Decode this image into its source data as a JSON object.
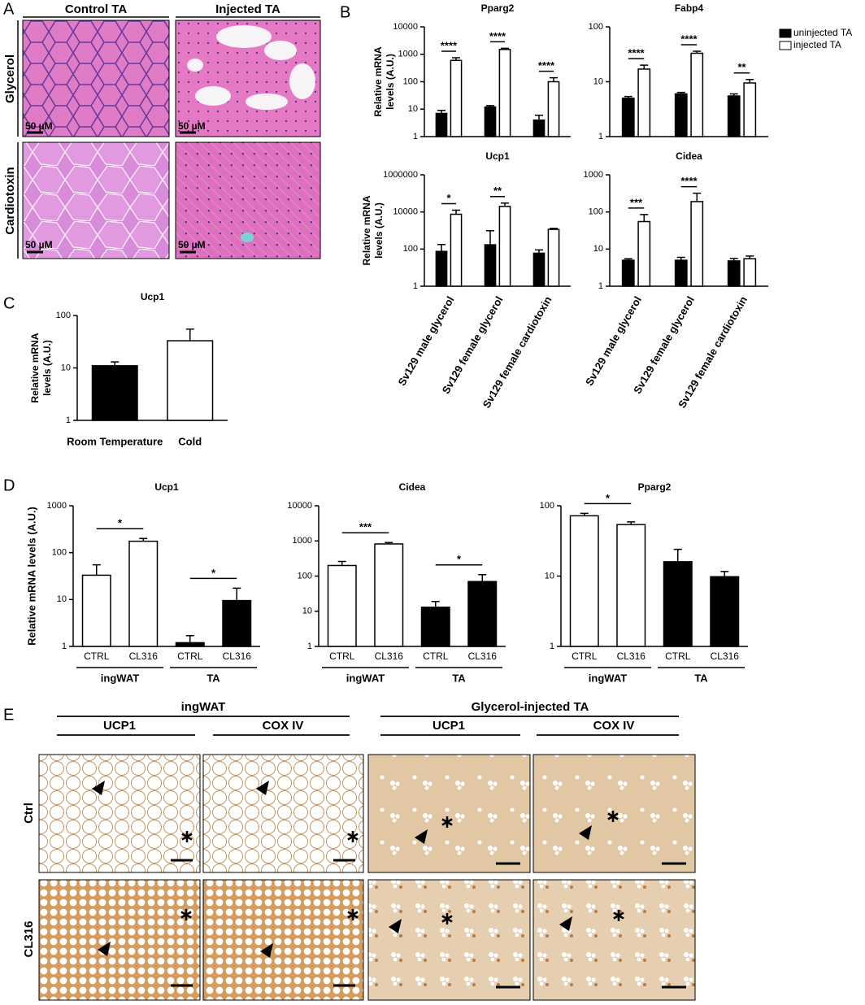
{
  "panel_labels": [
    "A",
    "B",
    "C",
    "D",
    "E"
  ],
  "panel_a": {
    "columns": [
      "Control TA",
      "Injected TA"
    ],
    "rows": [
      "Glycerol",
      "Cardiotoxin"
    ],
    "scale_bar": "50 µM"
  },
  "chart_data": [
    {
      "type": "bar",
      "title": "Pparg2",
      "ylabel": [
        "Relative mRNA",
        "levels (A.U.)"
      ],
      "categories": [
        null,
        null,
        null
      ],
      "series": [
        {
          "color": "#000000",
          "values": [
            7,
            12,
            4
          ],
          "errors": [
            2,
            1.5,
            2
          ]
        },
        {
          "color": "#ffffff",
          "values": [
            600,
            1500,
            100
          ],
          "errors": [
            150,
            150,
            40
          ]
        }
      ],
      "annotations": [
        "****",
        "****",
        "****"
      ],
      "yscale": "log",
      "ylim": [
        1,
        10000
      ],
      "yticks": [
        1,
        10,
        100,
        1000,
        10000
      ]
    },
    {
      "type": "bar",
      "title": "Fabp4",
      "categories": [
        null,
        null,
        null
      ],
      "legend": "right",
      "series": [
        {
          "name": "uninjected TA",
          "color": "#000000",
          "values": [
            5,
            6,
            5.5
          ],
          "errors": [
            0.4,
            0.4,
            0.5
          ]
        },
        {
          "name": "injected TA",
          "color": "#ffffff",
          "values": [
            17,
            33,
            9.5
          ],
          "errors": [
            3,
            3,
            1.5
          ]
        }
      ],
      "annotations": [
        "****",
        "****",
        "**"
      ],
      "yscale": "log",
      "ylim": [
        1,
        100
      ],
      "yticks": [
        1,
        10,
        100
      ]
    },
    {
      "type": "bar",
      "title": "Ucp1",
      "ylabel": [
        "Relative mRNA",
        "levels (A.U.)"
      ],
      "categories": [
        "Sv129 male glycerol",
        "Sv129 female glycerol",
        "Sv129 female cardiotoxin"
      ],
      "series": [
        {
          "color": "#000000",
          "values": [
            75,
            170,
            60
          ],
          "errors": [
            100,
            800,
            30
          ]
        },
        {
          "color": "#ffffff",
          "values": [
            7500,
            20000,
            1150
          ],
          "errors": [
            5000,
            10000,
            150
          ]
        }
      ],
      "annotations": [
        "*",
        "**",
        null
      ],
      "yscale": "log",
      "ylim": [
        1,
        1000000
      ],
      "yticks": [
        1,
        100,
        10000,
        1000000
      ]
    },
    {
      "type": "bar",
      "title": "Cidea",
      "categories": [
        "Sv129 male glycerol",
        "Sv129 female glycerol",
        "Sv129 female cardiotoxin"
      ],
      "series": [
        {
          "color": "#000000",
          "values": [
            5,
            5,
            4.8
          ],
          "errors": [
            0.5,
            1,
            0.8
          ]
        },
        {
          "color": "#ffffff",
          "values": [
            55,
            190,
            5.5
          ],
          "errors": [
            30,
            130,
            1
          ]
        }
      ],
      "annotations": [
        "***",
        "****",
        null
      ],
      "yscale": "log",
      "ylim": [
        1,
        1000
      ],
      "yticks": [
        1,
        10,
        100,
        1000
      ]
    },
    {
      "type": "bar",
      "title": "Ucp1",
      "ylabel": [
        "Relative mRNA",
        "levels (A.U.)"
      ],
      "categories": [
        "Room Temperature",
        "Cold"
      ],
      "values": [
        11,
        33
      ],
      "errors": [
        2,
        22
      ],
      "colors": [
        "#000000",
        "#ffffff"
      ],
      "yscale": "log",
      "ylim": [
        1,
        100
      ],
      "yticks": [
        1,
        10,
        100
      ]
    },
    {
      "type": "bar",
      "title": "Ucp1",
      "ylabel": "Relative mRNA levels (A.U.)",
      "categories": [
        "CTRL",
        "CL316",
        "CTRL",
        "CL316"
      ],
      "groups": [
        "ingWAT",
        "TA"
      ],
      "values": [
        33,
        175,
        1.2,
        9.5
      ],
      "errors": [
        22,
        25,
        0.5,
        8
      ],
      "colors": [
        "#ffffff",
        "#ffffff",
        "#000000",
        "#000000"
      ],
      "brackets": [
        "*",
        "*"
      ],
      "yscale": "log",
      "ylim": [
        1,
        1000
      ],
      "yticks": [
        1,
        10,
        100,
        1000
      ]
    },
    {
      "type": "bar",
      "title": "Cidea",
      "categories": [
        "CTRL",
        "CL316",
        "CTRL",
        "CL316"
      ],
      "groups": [
        "ingWAT",
        "TA"
      ],
      "values": [
        200,
        820,
        13,
        70
      ],
      "errors": [
        60,
        80,
        6,
        40
      ],
      "colors": [
        "#ffffff",
        "#ffffff",
        "#000000",
        "#000000"
      ],
      "brackets": [
        "***",
        "*"
      ],
      "yscale": "log",
      "ylim": [
        1,
        10000
      ],
      "yticks": [
        1,
        10,
        100,
        1000,
        10000
      ]
    },
    {
      "type": "bar",
      "title": "Pparg2",
      "categories": [
        "CTRL",
        "CL316",
        "CTRL",
        "CL316"
      ],
      "groups": [
        "ingWAT",
        "TA"
      ],
      "values": [
        72,
        54,
        16,
        9.8
      ],
      "errors": [
        6,
        5,
        8,
        1.8
      ],
      "colors": [
        "#ffffff",
        "#ffffff",
        "#000000",
        "#000000"
      ],
      "brackets": [
        "*",
        null
      ],
      "yscale": "log",
      "ylim": [
        1,
        100
      ],
      "yticks": [
        1,
        10,
        100
      ]
    }
  ],
  "panel_e": {
    "groups": [
      "ingWAT",
      "Glycerol-injected TA"
    ],
    "stains": [
      "UCP1",
      "COX IV"
    ],
    "rows": [
      "Ctrl",
      "CL316"
    ]
  }
}
